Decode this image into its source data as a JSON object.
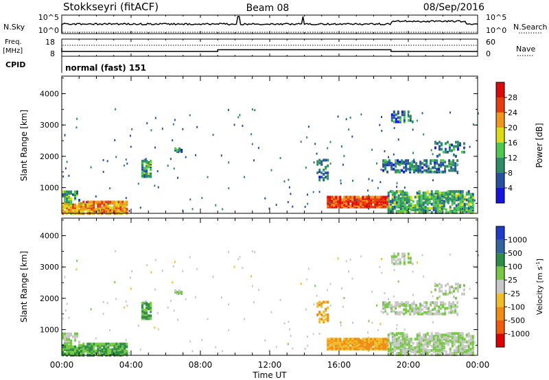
{
  "header": {
    "station": "Stokkseyri (fitACF)",
    "beam": "Beam 08",
    "date": "08/Sep/2016"
  },
  "nsky_panel": {
    "label": "N.Sky",
    "left_ticks": [
      "10^5",
      "10^0"
    ],
    "right_ticks": [
      "10^5",
      "10^0"
    ],
    "right_label": "N.Search"
  },
  "freq_panel": {
    "label_line1": "Freq.",
    "label_line2": "[MHz]",
    "left_ticks": [
      "18",
      "8"
    ],
    "right_ticks": [
      "60",
      "0"
    ],
    "right_label": "Nave",
    "cpid_label": "CPID",
    "cpid_value": "normal (fast) 151",
    "freq_steps": [
      {
        "t0": 0.0,
        "t1": 9.0,
        "mhz": 10.8
      },
      {
        "t0": 9.0,
        "t1": 19.0,
        "mhz": 11.8
      },
      {
        "t0": 19.0,
        "t1": 24.0,
        "mhz": 10.8
      }
    ]
  },
  "chart_data": [
    {
      "type": "heatmap",
      "name": "power",
      "ylabel": "Slant Range [km]",
      "ylim": [
        180,
        4560
      ],
      "yticks": [
        "1000",
        "2000",
        "3000",
        "4000"
      ],
      "ytick_values": [
        1000,
        2000,
        3000,
        4000
      ],
      "colorbar_label": "Power [dB]",
      "colorbar_ticks": [
        "4",
        "8",
        "12",
        "16",
        "20",
        "24",
        "28"
      ],
      "colorbar_values": [
        4,
        8,
        12,
        16,
        20,
        24,
        28
      ],
      "colorbar_colors": [
        "#1414dc",
        "#2850a0",
        "#2d8c64",
        "#50c850",
        "#dcdc14",
        "#f0961e",
        "#e63c0f",
        "#dc0a0a"
      ]
    },
    {
      "type": "heatmap",
      "name": "velocity",
      "ylabel": "Slant Range [km]",
      "ylim": [
        180,
        4560
      ],
      "yticks": [
        "1000",
        "2000",
        "3000",
        "4000"
      ],
      "ytick_values": [
        1000,
        2000,
        3000,
        4000
      ],
      "colorbar_label": "Velocity [m s",
      "colorbar_label_sup": "-1",
      "colorbar_label_end": "]",
      "colorbar_ticks": [
        "1000",
        "500",
        "100",
        "25",
        "-25",
        "-100",
        "-500",
        "-1000"
      ],
      "colorbar_colors": [
        "#1e3cc8",
        "#3264a0",
        "#2d8c46",
        "#78c846",
        "#c8c8c8",
        "#f0be28",
        "#f08c14",
        "#f05a0a",
        "#dc0000"
      ]
    }
  ],
  "xaxis": {
    "label": "Time UT",
    "ticks": [
      "00:00",
      "04:00",
      "08:00",
      "12:00",
      "16:00",
      "20:00",
      "00:00"
    ],
    "range_hours": [
      0,
      24
    ]
  },
  "data_regions": [
    {
      "t0": 0.0,
      "t1": 1.2,
      "r0": 180,
      "r1": 500,
      "pow": 20,
      "vel": 100,
      "density": 0.9
    },
    {
      "t0": 1.2,
      "t1": 3.7,
      "r0": 180,
      "r1": 550,
      "pow": 22,
      "vel": 100,
      "density": 0.8
    },
    {
      "t0": 0.0,
      "t1": 1.0,
      "r0": 550,
      "r1": 900,
      "pow": 12,
      "vel": 25,
      "density": 0.6
    },
    {
      "t0": 4.6,
      "t1": 5.1,
      "r0": 1350,
      "r1": 1850,
      "pow": 12,
      "vel": 100,
      "density": 0.7
    },
    {
      "t0": 6.5,
      "t1": 6.9,
      "r0": 2150,
      "r1": 2250,
      "pow": 8,
      "vel": 25,
      "density": 0.6
    },
    {
      "t0": 14.7,
      "t1": 15.3,
      "r0": 1200,
      "r1": 1900,
      "pow": 8,
      "vel": -100,
      "density": 0.4
    },
    {
      "t0": 15.3,
      "t1": 18.8,
      "r0": 380,
      "r1": 700,
      "pow": 26,
      "vel": -100,
      "density": 0.95
    },
    {
      "t0": 18.8,
      "t1": 23.7,
      "r0": 200,
      "r1": 900,
      "pow": 12,
      "vel": 25,
      "density": 0.6
    },
    {
      "t0": 18.5,
      "t1": 22.8,
      "r0": 1500,
      "r1": 1900,
      "pow": 8,
      "vel": 25,
      "density": 0.5
    },
    {
      "t0": 19.0,
      "t1": 20.2,
      "r0": 3100,
      "r1": 3450,
      "pow": 8,
      "vel": 25,
      "density": 0.4
    },
    {
      "t0": 21.5,
      "t1": 23.2,
      "r0": 2000,
      "r1": 2500,
      "pow": 8,
      "vel": 25,
      "density": 0.3
    }
  ]
}
